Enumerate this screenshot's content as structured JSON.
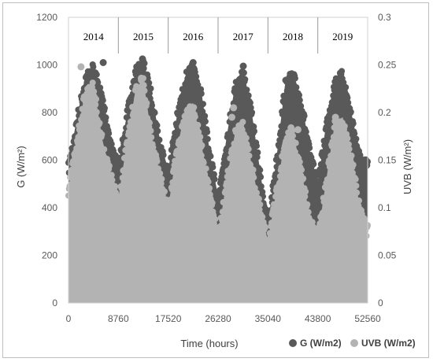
{
  "chart_data": {
    "type": "scatter",
    "title": "",
    "xlabel": "Time (hours)",
    "ylabel_left": "G (W/m²)",
    "ylabel_right": "UVB (W/m²)",
    "xlim": [
      0,
      52560
    ],
    "ylim_left": [
      0,
      1200
    ],
    "ylim_right": [
      0,
      0.3
    ],
    "x_ticks": [
      "0",
      "8760",
      "17520",
      "26280",
      "35040",
      "43800",
      "52560"
    ],
    "y_ticks_left": [
      "0",
      "200",
      "400",
      "600",
      "800",
      "1000",
      "1200"
    ],
    "y_ticks_right": [
      "0",
      "0.05",
      "0.1",
      "0.15",
      "0.2",
      "0.25",
      "0.3"
    ],
    "year_labels": [
      "2014",
      "2015",
      "2016",
      "2017",
      "2018",
      "2019"
    ],
    "year_boundaries": [
      8760,
      17520,
      26280,
      35040,
      43800
    ],
    "grid": false,
    "legend_position": "bottom-right",
    "series": [
      {
        "name": "G (W/m2)",
        "color": "#595959",
        "axis": "left",
        "envelope_x": [
          0,
          1500,
          3000,
          4380,
          6000,
          7500,
          8760,
          10300,
          11800,
          13140,
          14600,
          16100,
          17520,
          19000,
          20600,
          21900,
          23400,
          24900,
          26280,
          27800,
          29300,
          30660,
          32200,
          33700,
          35040,
          36600,
          38100,
          39420,
          40900,
          42400,
          43800,
          45300,
          46800,
          48180,
          49700,
          51200,
          52560
        ],
        "envelope_max": [
          580,
          780,
          960,
          1000,
          870,
          680,
          580,
          800,
          980,
          1020,
          880,
          680,
          560,
          780,
          960,
          1000,
          880,
          620,
          450,
          700,
          920,
          990,
          800,
          550,
          330,
          620,
          930,
          970,
          860,
          640,
          500,
          760,
          940,
          970,
          800,
          620,
          590
        ],
        "highlights": [
          {
            "x": 6100,
            "y": 1010
          },
          {
            "x": 13000,
            "y": 1025
          },
          {
            "x": 21900,
            "y": 1010
          },
          {
            "x": 30700,
            "y": 995
          }
        ]
      },
      {
        "name": "UVB  (W/m2)",
        "color": "#b3b3b3",
        "axis": "right",
        "envelope_x": [
          0,
          1500,
          3000,
          4380,
          6000,
          7500,
          8760,
          10300,
          11800,
          13140,
          14600,
          16100,
          17520,
          19000,
          20600,
          21900,
          23400,
          24900,
          26280,
          27800,
          29300,
          30660,
          32200,
          33700,
          35040,
          36600,
          38100,
          39420,
          40900,
          42400,
          43800,
          45300,
          46800,
          48180,
          49700,
          51200,
          52560
        ],
        "envelope_max": [
          0.12,
          0.175,
          0.225,
          0.23,
          0.17,
          0.135,
          0.11,
          0.17,
          0.225,
          0.235,
          0.175,
          0.135,
          0.1,
          0.16,
          0.205,
          0.21,
          0.165,
          0.115,
          0.07,
          0.13,
          0.18,
          0.19,
          0.145,
          0.1,
          0.065,
          0.12,
          0.175,
          0.18,
          0.14,
          0.09,
          0.07,
          0.13,
          0.19,
          0.195,
          0.155,
          0.1,
          0.08
        ],
        "highlights": [
          {
            "x": 2200,
            "y": 0.248
          },
          {
            "x": 12800,
            "y": 0.236
          },
          {
            "x": 29000,
            "y": 0.205
          },
          {
            "x": 28700,
            "y": 0.195
          },
          {
            "x": 39100,
            "y": 0.184
          },
          {
            "x": 40300,
            "y": 0.182
          },
          {
            "x": 46900,
            "y": 0.195
          }
        ]
      }
    ]
  }
}
